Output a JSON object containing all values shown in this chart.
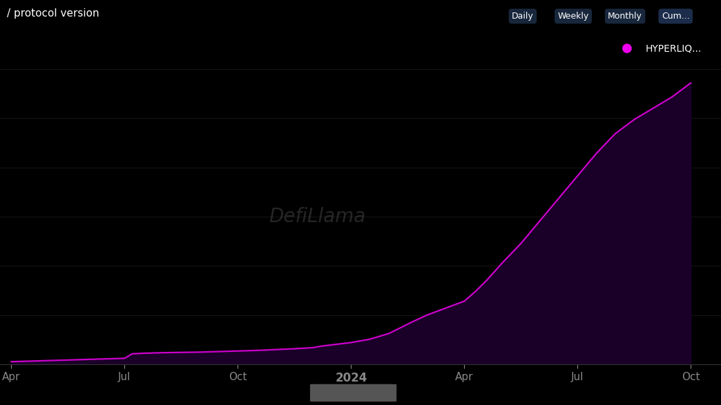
{
  "background_color": "#000000",
  "line_color": "#cc00cc",
  "fill_color": "#330044",
  "title_text": "/ protocol version",
  "legend_label": "HYPERLIQ...",
  "legend_dot_color": "#ee00ee",
  "x_tick_labels": [
    "Apr",
    "Jul",
    "Oct",
    "2024",
    "Apr",
    "Jul",
    "Oct"
  ],
  "x_tick_positions": [
    0,
    3,
    6,
    9,
    12,
    15,
    18
  ],
  "grid_color": "#1e1e1e",
  "watermark_text": "DefiLlama",
  "nav_buttons": [
    "Daily",
    "Weekly",
    "Monthly",
    "Cum..."
  ],
  "data_x": [
    0,
    0.5,
    1,
    1.5,
    2,
    2.5,
    3,
    3.2,
    3.5,
    4,
    4.5,
    5,
    5.5,
    6,
    6.5,
    7,
    7.5,
    8,
    8.2,
    8.5,
    9,
    9.5,
    10,
    10.3,
    10.6,
    11,
    11.5,
    12,
    12.3,
    12.6,
    13,
    13.5,
    14,
    14.5,
    15,
    15.5,
    16,
    16.5,
    17,
    17.5,
    18
  ],
  "data_y": [
    0.01,
    0.012,
    0.014,
    0.016,
    0.018,
    0.02,
    0.022,
    0.038,
    0.04,
    0.042,
    0.043,
    0.044,
    0.046,
    0.048,
    0.05,
    0.053,
    0.056,
    0.06,
    0.065,
    0.07,
    0.078,
    0.09,
    0.11,
    0.13,
    0.15,
    0.175,
    0.2,
    0.225,
    0.26,
    0.3,
    0.36,
    0.43,
    0.51,
    0.59,
    0.67,
    0.75,
    0.82,
    0.87,
    0.91,
    0.95,
    1.0
  ]
}
